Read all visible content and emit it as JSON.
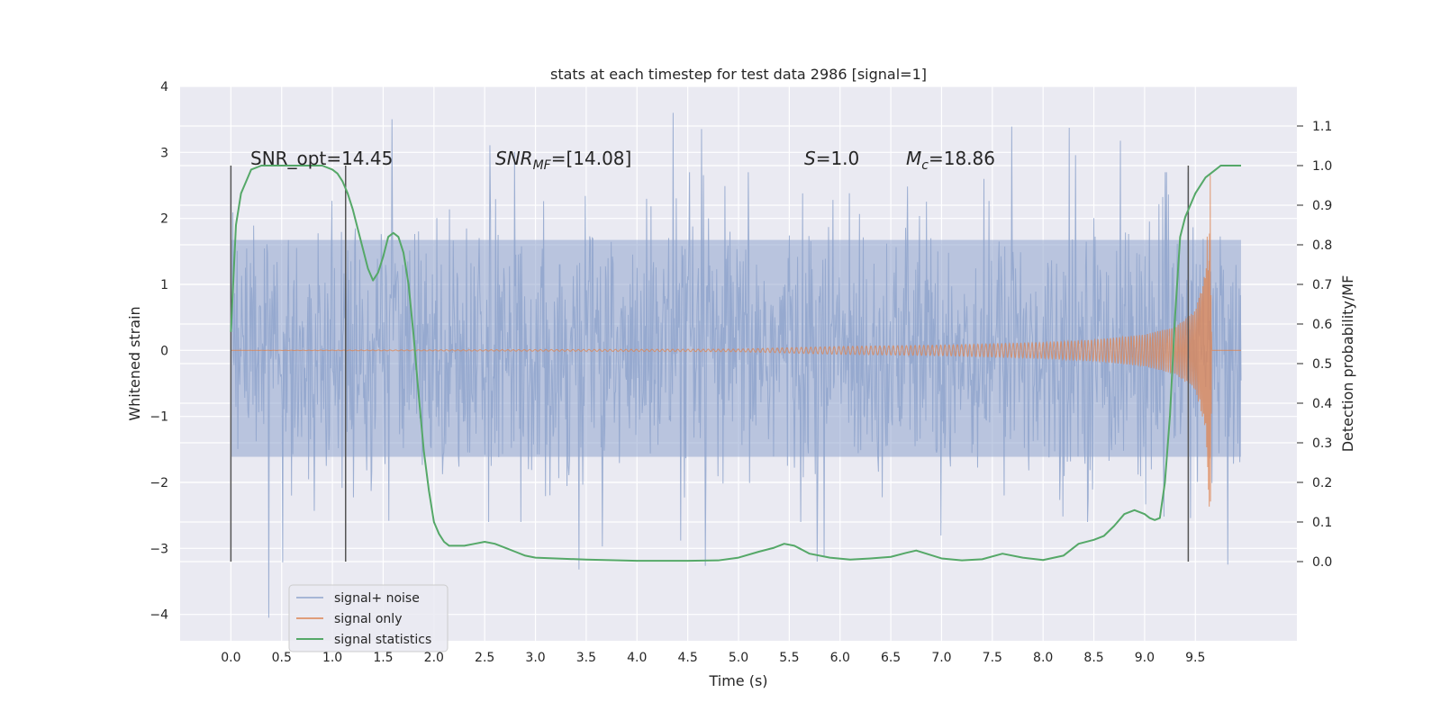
{
  "chart_data": {
    "type": "line",
    "title": "stats at each timestep for test data 2986 [signal=1]",
    "xlabel": "Time (s)",
    "ylabel_left": "Whitened strain",
    "ylabel_right": "Detection probability/MF",
    "xlim": [
      -0.5,
      10.5
    ],
    "ylim_left": [
      -4.4,
      4.0
    ],
    "ylim_right": [
      -0.2,
      1.2
    ],
    "x_ticks": [
      0.0,
      0.5,
      1.0,
      1.5,
      2.0,
      2.5,
      3.0,
      3.5,
      4.0,
      4.5,
      5.0,
      5.5,
      6.0,
      6.5,
      7.0,
      7.5,
      8.0,
      8.5,
      9.0,
      9.5
    ],
    "x_tick_labels": [
      "0.0",
      "0.5",
      "1.0",
      "1.5",
      "2.0",
      "2.5",
      "3.0",
      "3.5",
      "4.0",
      "4.5",
      "5.0",
      "5.5",
      "6.0",
      "6.5",
      "7.0",
      "7.5",
      "8.0",
      "8.5",
      "9.0",
      "9.5"
    ],
    "y_ticks_left": [
      -4,
      -3,
      -2,
      -1,
      0,
      1,
      2,
      3,
      4
    ],
    "y_tick_labels_left": [
      "−4",
      "−3",
      "−2",
      "−1",
      "0",
      "1",
      "2",
      "3",
      "4"
    ],
    "y_ticks_right": [
      0.0,
      0.1,
      0.2,
      0.3,
      0.4,
      0.5,
      0.6,
      0.7,
      0.8,
      0.9,
      1.0,
      1.1
    ],
    "y_tick_labels_right": [
      "0.0",
      "0.1",
      "0.2",
      "0.3",
      "0.4",
      "0.5",
      "0.6",
      "0.7",
      "0.8",
      "0.9",
      "1.0",
      "1.1"
    ],
    "grid": true,
    "legend_position": "lower-left",
    "annotations": {
      "snr_opt": "SNR_opt=14.45",
      "snr_mf_base": "SNR",
      "snr_mf_sub": "MF",
      "snr_mf_rest": "=[14.08]",
      "s_label": "S",
      "s_rest": "=1.0",
      "mc_base": "M",
      "mc_sub": "c",
      "mc_rest": "=18.86"
    },
    "vertical_markers_x": [
      0.0,
      1.13,
      9.43
    ],
    "series": [
      {
        "name": "signal+ noise",
        "axis": "left",
        "color": "#8fa4cd",
        "x_range": [
          0.0,
          9.95
        ],
        "typical_amplitude_range": [
          -2.6,
          2.7
        ],
        "peak_max": 3.6,
        "peak_min": -4.05
      },
      {
        "name": "signal only",
        "axis": "left",
        "color": "#dd8452",
        "x_range": [
          0.0,
          9.95
        ],
        "envelope_x": [
          0.0,
          5.0,
          6.0,
          7.0,
          8.0,
          8.5,
          9.0,
          9.3,
          9.5,
          9.6,
          9.65,
          9.66,
          9.95
        ],
        "envelope_amp": [
          0.0,
          0.02,
          0.06,
          0.08,
          0.12,
          0.16,
          0.24,
          0.36,
          0.6,
          1.2,
          2.8,
          0.0,
          0.0
        ]
      },
      {
        "name": "signal statistics",
        "axis": "right",
        "color": "#55a868",
        "x": [
          0.0,
          0.05,
          0.1,
          0.15,
          0.2,
          0.3,
          0.5,
          0.7,
          0.9,
          1.0,
          1.05,
          1.1,
          1.15,
          1.2,
          1.25,
          1.3,
          1.35,
          1.4,
          1.45,
          1.5,
          1.55,
          1.6,
          1.65,
          1.7,
          1.75,
          1.8,
          1.85,
          1.9,
          1.95,
          2.0,
          2.05,
          2.1,
          2.15,
          2.2,
          2.3,
          2.4,
          2.5,
          2.6,
          2.7,
          2.8,
          2.9,
          3.0,
          3.2,
          3.5,
          4.0,
          4.5,
          4.8,
          5.0,
          5.2,
          5.35,
          5.45,
          5.55,
          5.7,
          5.9,
          6.1,
          6.3,
          6.5,
          6.65,
          6.75,
          6.85,
          7.0,
          7.2,
          7.4,
          7.6,
          7.8,
          8.0,
          8.2,
          8.35,
          8.5,
          8.6,
          8.7,
          8.8,
          8.9,
          9.0,
          9.05,
          9.1,
          9.15,
          9.2,
          9.25,
          9.3,
          9.35,
          9.4,
          9.45,
          9.5,
          9.6,
          9.7,
          9.75,
          9.8,
          9.9,
          9.95
        ],
        "values": [
          0.58,
          0.85,
          0.93,
          0.96,
          0.99,
          1.0,
          1.0,
          1.0,
          1.0,
          0.99,
          0.98,
          0.96,
          0.93,
          0.89,
          0.84,
          0.79,
          0.74,
          0.71,
          0.73,
          0.77,
          0.82,
          0.83,
          0.82,
          0.78,
          0.7,
          0.57,
          0.42,
          0.28,
          0.18,
          0.1,
          0.07,
          0.05,
          0.04,
          0.04,
          0.04,
          0.045,
          0.05,
          0.045,
          0.035,
          0.025,
          0.015,
          0.01,
          0.008,
          0.005,
          0.002,
          0.002,
          0.003,
          0.01,
          0.025,
          0.035,
          0.045,
          0.04,
          0.02,
          0.01,
          0.005,
          0.008,
          0.012,
          0.022,
          0.028,
          0.02,
          0.008,
          0.003,
          0.006,
          0.02,
          0.01,
          0.004,
          0.015,
          0.045,
          0.055,
          0.065,
          0.09,
          0.12,
          0.13,
          0.12,
          0.11,
          0.105,
          0.11,
          0.2,
          0.37,
          0.62,
          0.82,
          0.87,
          0.9,
          0.93,
          0.97,
          0.99,
          1.0,
          1.0,
          1.0,
          1.0
        ]
      }
    ]
  }
}
